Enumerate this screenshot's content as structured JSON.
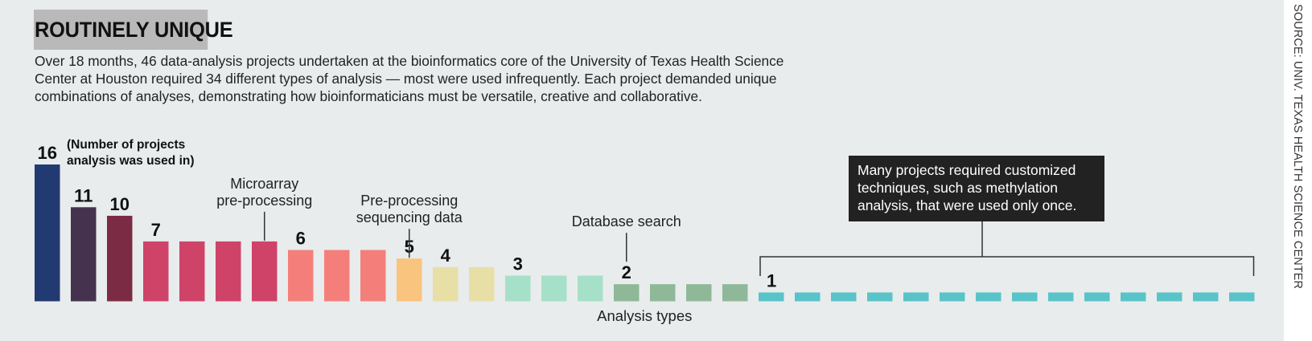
{
  "header": {
    "title": "ROUTINELY UNIQUE",
    "subtitle_lines": [
      "Over 18 months, 46 data-analysis projects undertaken at the bioinformatics core of the University of Texas Health Science",
      "Center at Houston required 34 different types of analysis — most were used infrequently. Each project demanded unique",
      "combinations of analyses, demonstrating how bioinformaticians must be versatile, creative and collaborative."
    ],
    "source": "SOURCE: UNIV. TEXAS HEALTH SCIENCE CENTER"
  },
  "chart_data": {
    "type": "bar",
    "xlabel": "Analysis types",
    "values": [
      16,
      11,
      10,
      7,
      7,
      7,
      7,
      6,
      6,
      6,
      5,
      4,
      4,
      3,
      3,
      3,
      2,
      2,
      2,
      2,
      1,
      1,
      1,
      1,
      1,
      1,
      1,
      1,
      1,
      1,
      1,
      1,
      1,
      1
    ],
    "colors": [
      "#223a72",
      "#44324f",
      "#7c2b45",
      "#cf4369",
      "#cf4369",
      "#cf4369",
      "#cf4369",
      "#f47f7a",
      "#f47f7a",
      "#f47f7a",
      "#f9c47e",
      "#e8dfa7",
      "#e8dfa7",
      "#a6e0c8",
      "#a6e0c8",
      "#a6e0c8",
      "#8fb898",
      "#8fb898",
      "#8fb898",
      "#8fb898",
      "#58c4c9",
      "#58c4c9",
      "#58c4c9",
      "#58c4c9",
      "#58c4c9",
      "#58c4c9",
      "#58c4c9",
      "#58c4c9",
      "#58c4c9",
      "#58c4c9",
      "#58c4c9",
      "#58c4c9",
      "#58c4c9",
      "#58c4c9"
    ],
    "value_labels": [
      {
        "index": 0,
        "text": "16"
      },
      {
        "index": 1,
        "text": "11"
      },
      {
        "index": 2,
        "text": "10"
      },
      {
        "index": 3,
        "text": "7"
      },
      {
        "index": 7,
        "text": "6"
      },
      {
        "index": 10,
        "text": "5"
      },
      {
        "index": 11,
        "text": "4"
      },
      {
        "index": 13,
        "text": "3"
      },
      {
        "index": 16,
        "text": "2"
      },
      {
        "index": 20,
        "text": "1"
      }
    ],
    "value_note_lines": [
      "(Number of projects",
      "analysis was used in)"
    ],
    "annotations": [
      {
        "index": 6,
        "lines": [
          "Microarray",
          "pre-processing"
        ]
      },
      {
        "index": 10,
        "lines": [
          "Pre-processing",
          "sequencing data"
        ]
      },
      {
        "index": 16,
        "lines": [
          "Database search"
        ]
      }
    ],
    "callout": {
      "start_index": 20,
      "end_index": 33,
      "lines": [
        "Many projects required customized",
        "techniques, such as methylation",
        "analysis, that were used only once."
      ],
      "box_color": "#222222"
    }
  }
}
